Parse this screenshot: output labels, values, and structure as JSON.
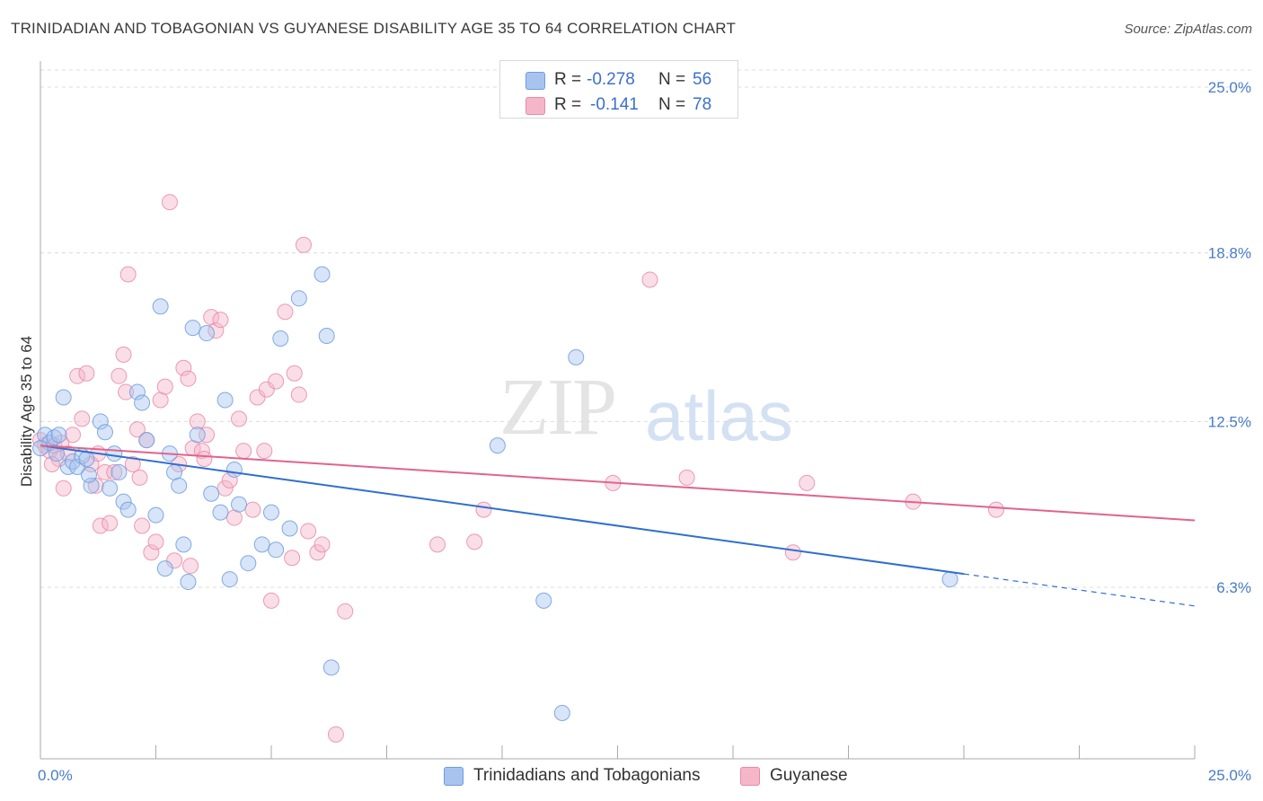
{
  "header": {
    "title": "TRINIDADIAN AND TOBAGONIAN VS GUYANESE DISABILITY AGE 35 TO 64 CORRELATION CHART",
    "source": "Source: ZipAtlas.com"
  },
  "watermark": {
    "zip": "ZIP",
    "atlas": "atlas"
  },
  "legend": {
    "rows": [
      {
        "r_label": "R =",
        "r_value": "-0.278",
        "n_label": "N =",
        "n_value": "56",
        "color": "#a8c4ee"
      },
      {
        "r_label": "R =",
        "r_value": "-0.141",
        "n_label": "N =",
        "n_value": "78",
        "color": "#f5b6c9"
      }
    ]
  },
  "bottom_legend": {
    "items": [
      {
        "label": "Trinidadians and Tobagonians",
        "color": "#a8c4ee"
      },
      {
        "label": "Guyanese",
        "color": "#f5b6c9"
      }
    ]
  },
  "chart_data": {
    "type": "scatter",
    "title": "TRINIDADIAN AND TOBAGONIAN VS GUYANESE DISABILITY AGE 35 TO 64 CORRELATION CHART",
    "ylabel": "Disability Age 35 to 64",
    "xlabel": "",
    "xlim": [
      0,
      25
    ],
    "ylim": [
      0,
      26
    ],
    "x_tick_labels": [
      "0.0%",
      "25.0%"
    ],
    "y_tick_labels": [
      "6.3%",
      "12.5%",
      "18.8%",
      "25.0%"
    ],
    "y_ticks": [
      6.3,
      12.5,
      18.8,
      25.0
    ],
    "grid": "horizontal dashed",
    "legend_position": "top-center",
    "series": [
      {
        "name": "Trinidadians and Tobagonians",
        "color": "#6c9de0",
        "fill": "#a8c4ee",
        "trend": {
          "x0": 0,
          "y0": 11.6,
          "x1": 20.0,
          "y1": 6.8,
          "dashed_to": 25.0,
          "dashed_y": 5.6,
          "color": "#2f6fcf"
        },
        "points": [
          [
            0.1,
            12.0
          ],
          [
            0.2,
            11.7
          ],
          [
            0.3,
            11.9
          ],
          [
            0.4,
            12.0
          ],
          [
            0.5,
            13.4
          ],
          [
            0.6,
            10.8
          ],
          [
            0.7,
            11.0
          ],
          [
            0.8,
            10.8
          ],
          [
            0.9,
            11.2
          ],
          [
            1.0,
            11.1
          ],
          [
            1.1,
            10.1
          ],
          [
            1.3,
            12.5
          ],
          [
            1.4,
            12.1
          ],
          [
            1.5,
            10.0
          ],
          [
            1.6,
            11.3
          ],
          [
            1.7,
            10.6
          ],
          [
            1.8,
            9.5
          ],
          [
            1.9,
            9.2
          ],
          [
            2.1,
            13.6
          ],
          [
            2.2,
            13.2
          ],
          [
            2.3,
            11.8
          ],
          [
            2.5,
            9.0
          ],
          [
            2.6,
            16.8
          ],
          [
            2.7,
            7.0
          ],
          [
            2.8,
            11.3
          ],
          [
            2.9,
            10.6
          ],
          [
            3.0,
            10.1
          ],
          [
            3.1,
            7.9
          ],
          [
            3.2,
            6.5
          ],
          [
            3.3,
            16.0
          ],
          [
            3.4,
            12.0
          ],
          [
            3.6,
            15.8
          ],
          [
            3.7,
            9.8
          ],
          [
            3.9,
            9.1
          ],
          [
            4.0,
            13.3
          ],
          [
            4.1,
            6.6
          ],
          [
            4.2,
            10.7
          ],
          [
            4.3,
            9.4
          ],
          [
            4.5,
            7.2
          ],
          [
            4.8,
            7.9
          ],
          [
            5.0,
            9.1
          ],
          [
            5.1,
            7.7
          ],
          [
            5.2,
            15.6
          ],
          [
            5.4,
            8.5
          ],
          [
            5.6,
            17.1
          ],
          [
            6.1,
            18.0
          ],
          [
            6.2,
            15.7
          ],
          [
            6.3,
            3.3
          ],
          [
            9.9,
            11.6
          ],
          [
            10.9,
            5.8
          ],
          [
            11.3,
            1.6
          ],
          [
            11.6,
            14.9
          ],
          [
            19.7,
            6.6
          ],
          [
            0.0,
            11.5
          ],
          [
            0.35,
            11.3
          ],
          [
            1.05,
            10.5
          ]
        ]
      },
      {
        "name": "Guyanese",
        "color": "#ea8aa6",
        "fill": "#f5b6c9",
        "trend": {
          "x0": 0,
          "y0": 11.6,
          "x1": 25.0,
          "y1": 8.8,
          "color": "#e0648c"
        },
        "points": [
          [
            0.0,
            11.8
          ],
          [
            0.1,
            11.6
          ],
          [
            0.2,
            11.4
          ],
          [
            0.3,
            11.6
          ],
          [
            0.4,
            11.1
          ],
          [
            0.5,
            10.0
          ],
          [
            0.6,
            11.3
          ],
          [
            0.7,
            12.0
          ],
          [
            0.8,
            14.2
          ],
          [
            0.9,
            12.6
          ],
          [
            1.0,
            14.3
          ],
          [
            1.1,
            10.9
          ],
          [
            1.2,
            10.1
          ],
          [
            1.3,
            8.6
          ],
          [
            1.4,
            10.6
          ],
          [
            1.5,
            8.7
          ],
          [
            1.6,
            10.6
          ],
          [
            1.7,
            14.2
          ],
          [
            1.8,
            15.0
          ],
          [
            1.9,
            18.0
          ],
          [
            2.0,
            10.9
          ],
          [
            2.1,
            12.2
          ],
          [
            2.2,
            8.6
          ],
          [
            2.3,
            11.8
          ],
          [
            2.4,
            7.6
          ],
          [
            2.5,
            8.0
          ],
          [
            2.6,
            13.3
          ],
          [
            2.7,
            13.8
          ],
          [
            2.8,
            20.7
          ],
          [
            2.9,
            7.3
          ],
          [
            3.0,
            10.9
          ],
          [
            3.1,
            14.5
          ],
          [
            3.2,
            14.1
          ],
          [
            3.3,
            11.5
          ],
          [
            3.4,
            12.5
          ],
          [
            3.5,
            11.4
          ],
          [
            3.6,
            12.0
          ],
          [
            3.7,
            16.4
          ],
          [
            3.8,
            15.9
          ],
          [
            3.9,
            16.3
          ],
          [
            4.0,
            10.0
          ],
          [
            4.1,
            10.3
          ],
          [
            4.2,
            8.9
          ],
          [
            4.3,
            12.6
          ],
          [
            4.4,
            11.4
          ],
          [
            4.6,
            9.2
          ],
          [
            4.7,
            13.4
          ],
          [
            4.9,
            13.7
          ],
          [
            5.0,
            5.8
          ],
          [
            5.1,
            14.0
          ],
          [
            5.3,
            16.6
          ],
          [
            5.5,
            14.3
          ],
          [
            5.6,
            13.5
          ],
          [
            5.7,
            19.1
          ],
          [
            5.8,
            8.4
          ],
          [
            6.0,
            7.6
          ],
          [
            6.1,
            7.9
          ],
          [
            6.4,
            0.8
          ],
          [
            8.6,
            7.9
          ],
          [
            9.4,
            8.0
          ],
          [
            9.6,
            9.2
          ],
          [
            12.4,
            10.2
          ],
          [
            13.2,
            17.8
          ],
          [
            14.0,
            10.4
          ],
          [
            16.3,
            7.6
          ],
          [
            16.6,
            10.2
          ],
          [
            18.9,
            9.5
          ],
          [
            20.7,
            9.2
          ],
          [
            0.25,
            10.9
          ],
          [
            1.25,
            11.3
          ],
          [
            2.15,
            10.4
          ],
          [
            3.55,
            11.1
          ],
          [
            5.45,
            7.4
          ],
          [
            6.6,
            5.4
          ],
          [
            4.85,
            11.4
          ],
          [
            3.25,
            7.1
          ],
          [
            1.85,
            13.6
          ],
          [
            0.45,
            11.7
          ]
        ]
      }
    ]
  }
}
